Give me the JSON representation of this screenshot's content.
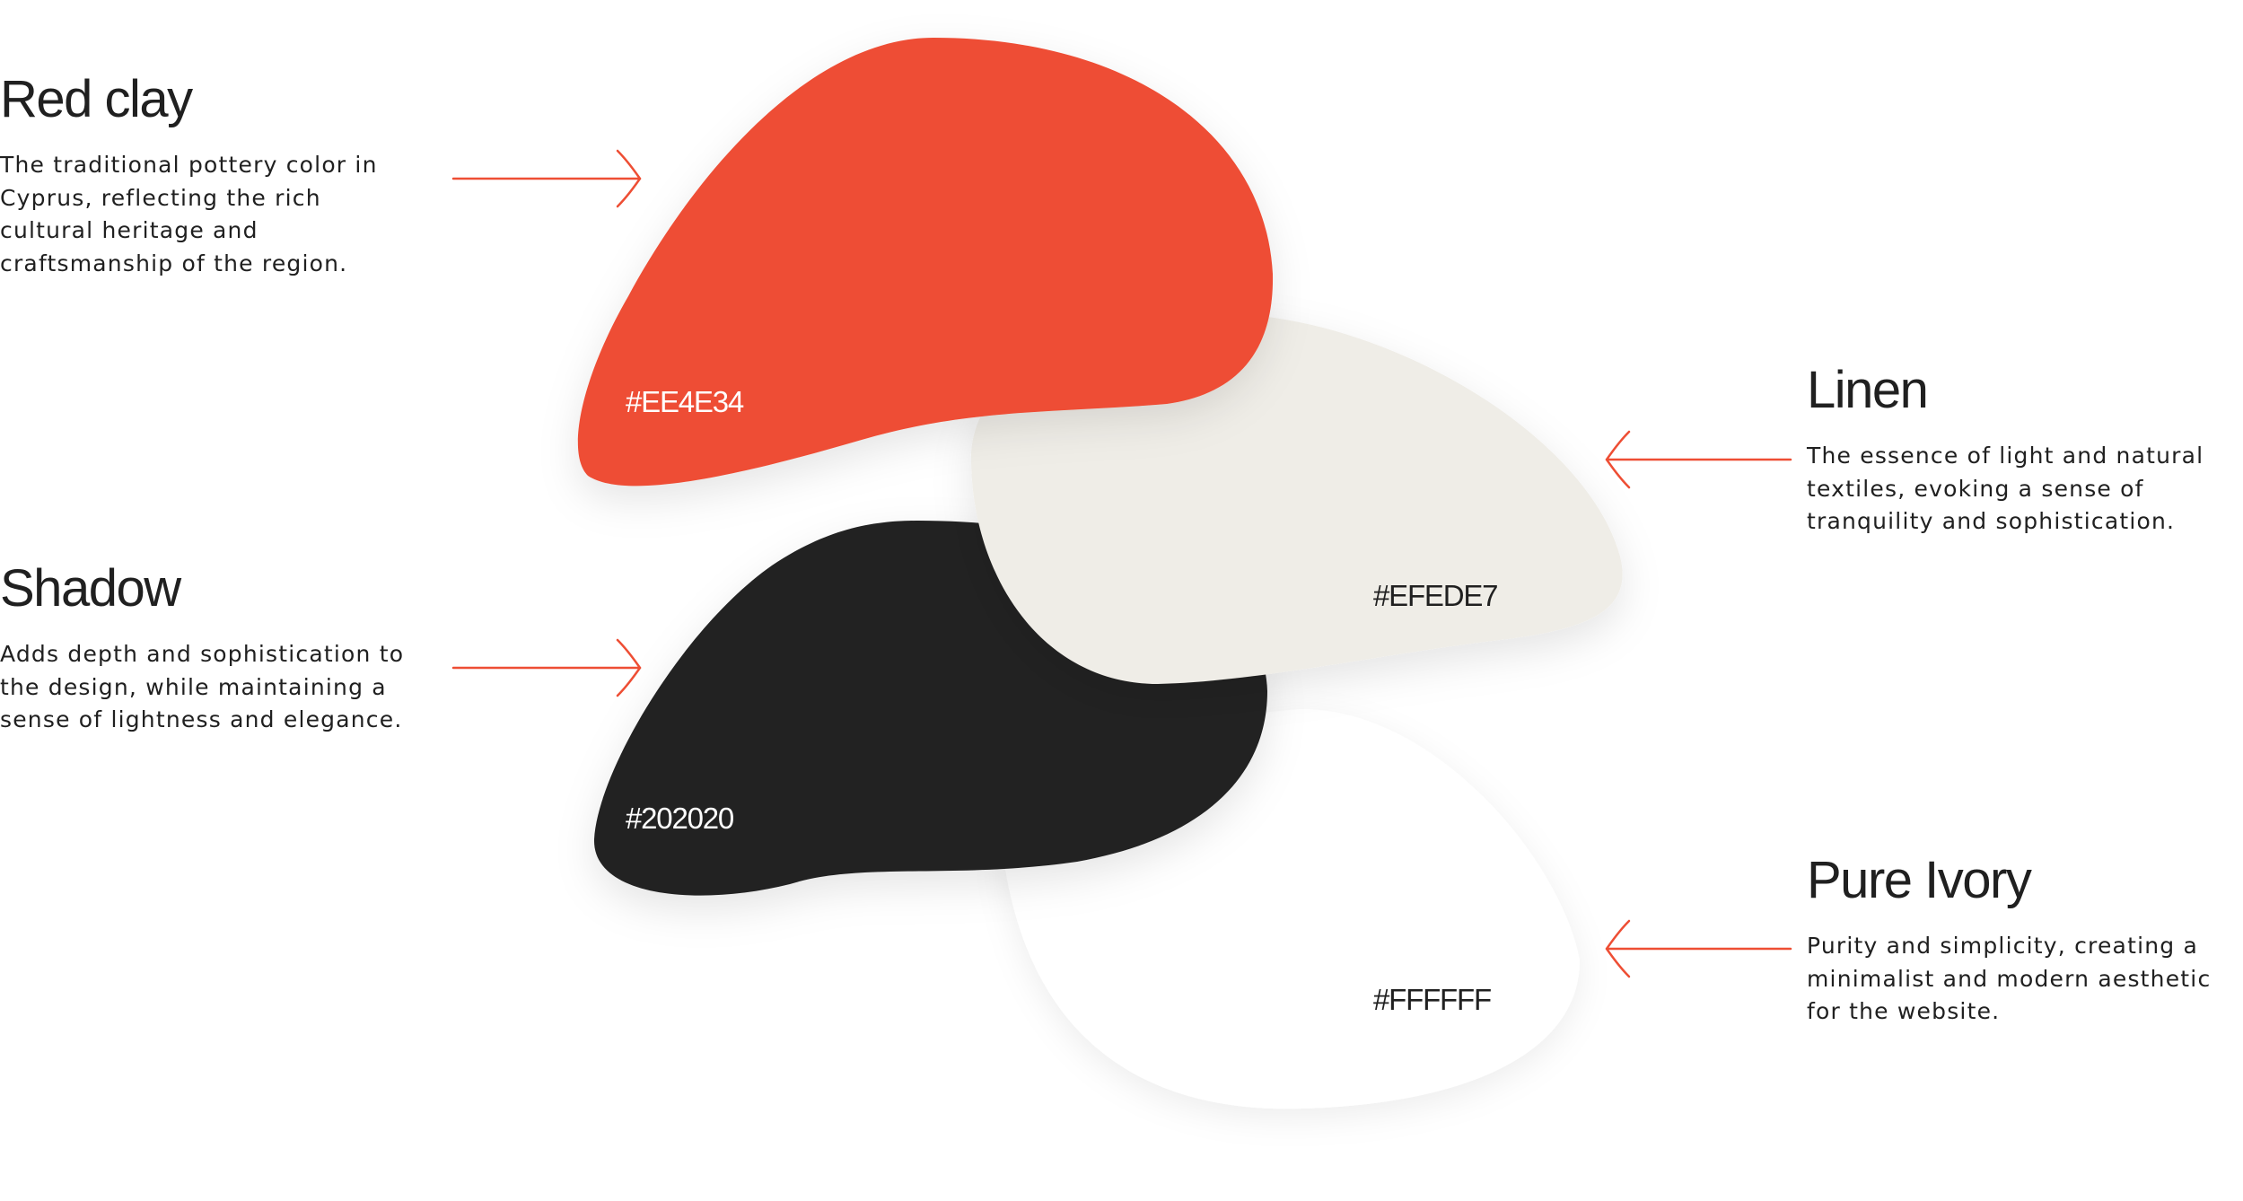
{
  "colors": [
    {
      "name": "Red clay",
      "hex": "#EE4E34",
      "description": "The traditional pottery color in Cyprus, reflecting the rich cultural heritage and craftsmanship of the region."
    },
    {
      "name": "Linen",
      "hex": "#EFEDE7",
      "description": "The essence of light and natural textiles, evoking a sense of tranquility and sophistication."
    },
    {
      "name": "Shadow",
      "hex": "#202020",
      "description": "Adds depth and sophistication to the design, while maintaining a sense of lightness and elegance."
    },
    {
      "name": "Pure Ivory",
      "hex": "#FFFFFF",
      "description": "Purity and simplicity, creating a minimalist and modern aesthetic for the website."
    }
  ],
  "accent": "#EE4E34"
}
